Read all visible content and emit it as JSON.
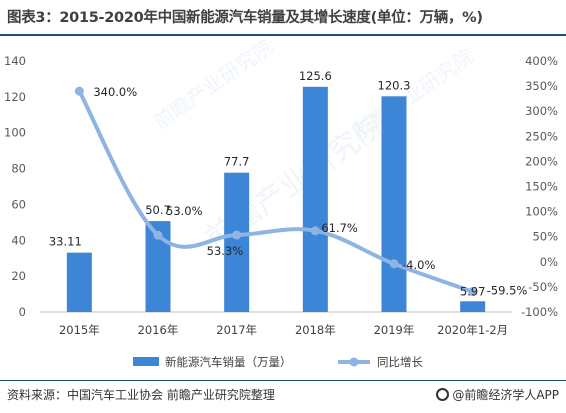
{
  "title": "图表3：2015-2020年中国新能源汽车销量及其增长速度(单位：万辆，%)",
  "source": "资料来源：中国汽车工业协会 前瞻产业研究院整理",
  "brand": "@前瞻经济学人APP",
  "chart_data": {
    "type": "bar",
    "categories": [
      "2015年",
      "2016年",
      "2017年",
      "2018年",
      "2019年",
      "2020年1-2月"
    ],
    "series": [
      {
        "name": "新能源汽车销量（万量）",
        "type": "bar",
        "axis": "left",
        "values": [
          33.11,
          50.7,
          77.7,
          125.6,
          120.3,
          5.97
        ],
        "labels": [
          "33.11",
          "50.7",
          "77.7",
          "125.6",
          "120.3",
          "5.97"
        ],
        "color": "#3d85d6"
      },
      {
        "name": "同比增长",
        "type": "line",
        "axis": "right",
        "values": [
          340.0,
          53.0,
          53.3,
          61.7,
          -4.0,
          -59.5
        ],
        "labels": [
          "340.0%",
          "53.0%",
          "53.3%",
          "61.7%",
          "-4.0%",
          "-59.5%"
        ],
        "color": "#8db4e2"
      }
    ],
    "ylim": [
      0,
      140
    ],
    "y_ticks": [
      "0",
      "20",
      "40",
      "60",
      "80",
      "100",
      "120",
      "140"
    ],
    "y2lim": [
      -100,
      400
    ],
    "y2_ticks": [
      "-100%",
      "-50%",
      "0%",
      "50%",
      "100%",
      "150%",
      "200%",
      "250%",
      "300%",
      "350%",
      "400%"
    ],
    "grid": false,
    "legend": "bottom"
  }
}
